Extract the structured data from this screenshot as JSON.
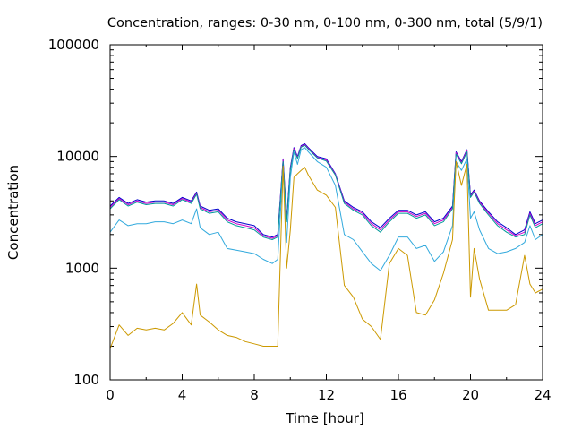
{
  "chart_data": {
    "type": "line",
    "title": "Concentration, ranges: 0-30 nm, 0-100 nm, 0-300 nm, total (5/9/1)",
    "xlabel": "Time [hour]",
    "ylabel": "Concentration",
    "xlim": [
      0,
      24
    ],
    "ylim": [
      100,
      100000
    ],
    "yscale": "log",
    "grid": false,
    "legend": "none",
    "x_ticks": [
      0,
      4,
      8,
      12,
      16,
      20,
      24
    ],
    "x_tick_labels": [
      "0",
      "4",
      "8",
      "12",
      "16",
      "20",
      "24"
    ],
    "y_ticks": [
      100,
      1000,
      10000,
      100000
    ],
    "y_tick_labels": [
      "100",
      "1000",
      "10000",
      "100000"
    ],
    "x": [
      0,
      0.5,
      1,
      1.5,
      2,
      2.5,
      3,
      3.5,
      4,
      4.5,
      4.8,
      5,
      5.5,
      6,
      6.5,
      7,
      7.5,
      8,
      8.5,
      9,
      9.3,
      9.6,
      9.8,
      10,
      10.2,
      10.4,
      10.6,
      10.8,
      11,
      11.5,
      12,
      12.5,
      13,
      13.5,
      14,
      14.5,
      15,
      15.5,
      16,
      16.5,
      17,
      17.5,
      18,
      18.5,
      19,
      19.2,
      19.5,
      19.8,
      20,
      20.2,
      20.5,
      21,
      21.5,
      22,
      22.5,
      23,
      23.3,
      23.6,
      24
    ],
    "series": [
      {
        "color": "#0000cc",
        "values": [
          3600,
          4300,
          3800,
          4100,
          3900,
          4000,
          4000,
          3800,
          4300,
          4000,
          4800,
          3600,
          3300,
          3400,
          2800,
          2600,
          2500,
          2400,
          2000,
          1900,
          2000,
          9500,
          2800,
          8000,
          12000,
          10000,
          12500,
          13000,
          12000,
          10000,
          9500,
          7000,
          4000,
          3500,
          3200,
          2600,
          2300,
          2800,
          3300,
          3300,
          3000,
          3200,
          2600,
          2800,
          3600,
          11000,
          9000,
          11500,
          4500,
          5000,
          4000,
          3200,
          2600,
          2300,
          2000,
          2200,
          3200,
          2500,
          2700
        ]
      },
      {
        "color": "#cc00cc",
        "values": [
          3500,
          4200,
          3700,
          4000,
          3800,
          3900,
          3900,
          3700,
          4200,
          3900,
          4700,
          3500,
          3200,
          3300,
          2700,
          2500,
          2400,
          2300,
          1950,
          1850,
          1950,
          9300,
          2700,
          7800,
          11800,
          9800,
          12300,
          12800,
          11800,
          9800,
          9300,
          6900,
          3900,
          3400,
          3100,
          2500,
          2200,
          2700,
          3200,
          3200,
          2900,
          3100,
          2500,
          2700,
          3500,
          10800,
          8800,
          11300,
          4400,
          4900,
          3900,
          3100,
          2500,
          2200,
          1950,
          2100,
          3100,
          2400,
          2600
        ]
      },
      {
        "color": "#009999",
        "values": [
          3400,
          4100,
          3600,
          3900,
          3700,
          3800,
          3800,
          3600,
          4100,
          3800,
          4600,
          3400,
          3100,
          3200,
          2600,
          2400,
          2300,
          2200,
          1900,
          1800,
          1900,
          9000,
          2600,
          7600,
          11500,
          9600,
          12100,
          12600,
          11600,
          9700,
          9100,
          6800,
          3800,
          3300,
          3000,
          2400,
          2100,
          2600,
          3100,
          3100,
          2800,
          3000,
          2400,
          2600,
          3400,
          10500,
          8600,
          11000,
          4300,
          4800,
          3800,
          3000,
          2400,
          2100,
          1900,
          2000,
          3000,
          2300,
          2500
        ]
      },
      {
        "color": "#33aadd",
        "values": [
          2100,
          2700,
          2400,
          2500,
          2500,
          2600,
          2600,
          2500,
          2700,
          2500,
          3400,
          2300,
          2000,
          2100,
          1500,
          1450,
          1400,
          1350,
          1200,
          1100,
          1200,
          8000,
          1700,
          6500,
          11000,
          8500,
          11500,
          12000,
          11000,
          9000,
          8000,
          5500,
          2000,
          1800,
          1400,
          1100,
          950,
          1300,
          1900,
          1900,
          1500,
          1600,
          1150,
          1400,
          2400,
          9000,
          7500,
          9500,
          2800,
          3200,
          2200,
          1500,
          1350,
          1400,
          1500,
          1700,
          2400,
          1800,
          2000
        ]
      },
      {
        "color": "#cc9900",
        "values": [
          190,
          310,
          250,
          290,
          280,
          290,
          280,
          320,
          400,
          310,
          720,
          380,
          330,
          280,
          250,
          240,
          220,
          210,
          200,
          200,
          200,
          8200,
          1000,
          2200,
          6500,
          7000,
          7500,
          8000,
          6800,
          5000,
          4500,
          3500,
          700,
          550,
          350,
          300,
          230,
          1100,
          1500,
          1300,
          400,
          380,
          520,
          900,
          1800,
          9000,
          5500,
          8500,
          550,
          1500,
          800,
          420,
          420,
          420,
          470,
          1300,
          720,
          600,
          650
        ]
      }
    ]
  }
}
